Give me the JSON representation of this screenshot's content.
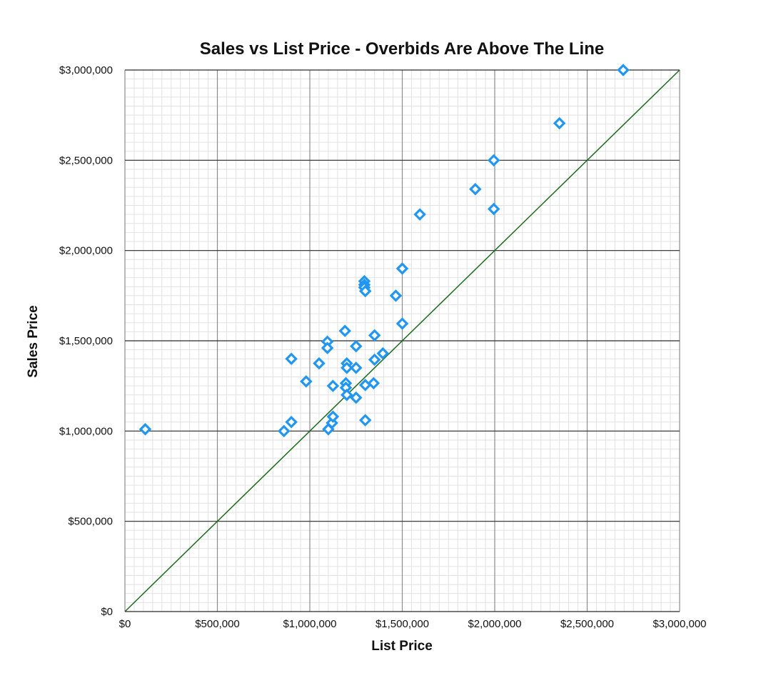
{
  "chart_data": {
    "type": "scatter",
    "title": "Sales vs List Price - Overbids Are Above The Line",
    "xlabel": "List Price",
    "ylabel": "Sales Price",
    "xlim": [
      0,
      3000000
    ],
    "ylim": [
      0,
      3000000
    ],
    "x_ticks": [
      0,
      500000,
      1000000,
      1500000,
      2000000,
      2500000,
      3000000
    ],
    "x_tick_labels": [
      "$0",
      "$500,000",
      "$1,000,000",
      "$1,500,000",
      "$2,000,000",
      "$2,500,000",
      "$3,000,000"
    ],
    "y_ticks": [
      0,
      500000,
      1000000,
      1500000,
      2000000,
      2500000,
      3000000
    ],
    "y_tick_labels": [
      "$0",
      "$500,000",
      "$1,000,000",
      "$1,500,000",
      "$2,000,000",
      "$2,500,000",
      "$3,000,000"
    ],
    "grid": true,
    "minor_grid": true,
    "reference_line": {
      "from": [
        0,
        0
      ],
      "to": [
        3000000,
        3000000
      ],
      "color": "#1b6b1b"
    },
    "marker_color": "#2196f3",
    "points": [
      {
        "x": 110000,
        "y": 1010000
      },
      {
        "x": 860000,
        "y": 1000000
      },
      {
        "x": 900000,
        "y": 1050000
      },
      {
        "x": 900000,
        "y": 1400000
      },
      {
        "x": 980000,
        "y": 1275000
      },
      {
        "x": 1050000,
        "y": 1375000
      },
      {
        "x": 1095000,
        "y": 1495000
      },
      {
        "x": 1095000,
        "y": 1460000
      },
      {
        "x": 1100000,
        "y": 1010000
      },
      {
        "x": 1120000,
        "y": 1045000
      },
      {
        "x": 1125000,
        "y": 1080000
      },
      {
        "x": 1125000,
        "y": 1250000
      },
      {
        "x": 1190000,
        "y": 1555000
      },
      {
        "x": 1195000,
        "y": 1265000
      },
      {
        "x": 1195000,
        "y": 1240000
      },
      {
        "x": 1200000,
        "y": 1375000
      },
      {
        "x": 1200000,
        "y": 1350000
      },
      {
        "x": 1200000,
        "y": 1200000
      },
      {
        "x": 1250000,
        "y": 1470000
      },
      {
        "x": 1250000,
        "y": 1350000
      },
      {
        "x": 1250000,
        "y": 1185000
      },
      {
        "x": 1295000,
        "y": 1830000
      },
      {
        "x": 1295000,
        "y": 1810000
      },
      {
        "x": 1295000,
        "y": 1795000
      },
      {
        "x": 1300000,
        "y": 1775000
      },
      {
        "x": 1300000,
        "y": 1255000
      },
      {
        "x": 1300000,
        "y": 1060000
      },
      {
        "x": 1345000,
        "y": 1265000
      },
      {
        "x": 1350000,
        "y": 1530000
      },
      {
        "x": 1350000,
        "y": 1395000
      },
      {
        "x": 1395000,
        "y": 1430000
      },
      {
        "x": 1465000,
        "y": 1750000
      },
      {
        "x": 1500000,
        "y": 1900000
      },
      {
        "x": 1500000,
        "y": 1595000
      },
      {
        "x": 1595000,
        "y": 2200000
      },
      {
        "x": 1895000,
        "y": 2340000
      },
      {
        "x": 1995000,
        "y": 2500000
      },
      {
        "x": 1995000,
        "y": 2230000
      },
      {
        "x": 2350000,
        "y": 2705000
      },
      {
        "x": 2695000,
        "y": 3000000
      }
    ]
  }
}
